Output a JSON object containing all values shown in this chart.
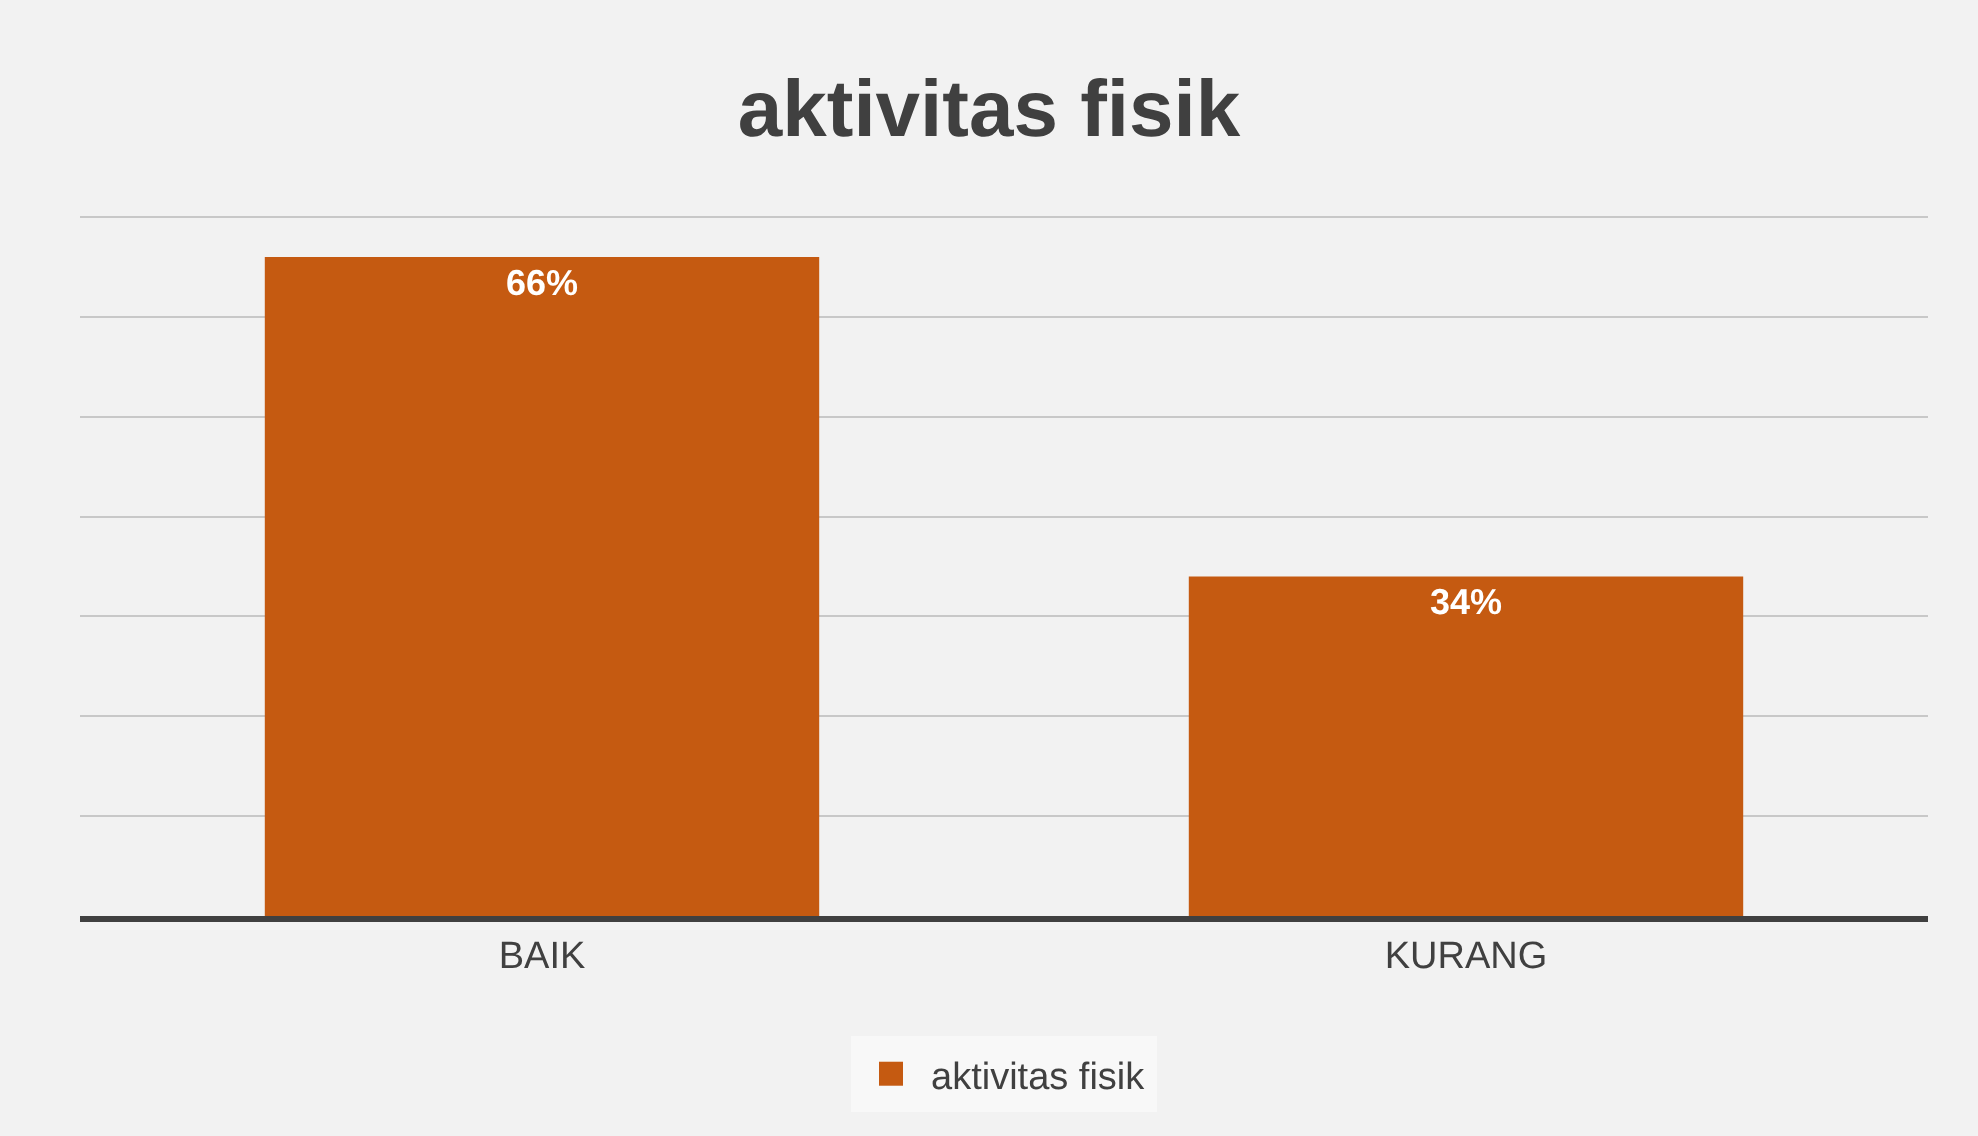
{
  "chart_data": {
    "type": "bar",
    "title": "aktivitas fisik",
    "categories": [
      "BAIK",
      "KURANG"
    ],
    "series": [
      {
        "name": "aktivitas fisik",
        "color": "#c55a11",
        "values": [
          66,
          34
        ],
        "value_labels": [
          "66%",
          "34%"
        ]
      }
    ],
    "yticks": [
      {
        "value": 0,
        "label": null
      },
      {
        "value": 10,
        "label": null
      },
      {
        "value": 20,
        "label": null
      },
      {
        "value": 30,
        "label": null
      },
      {
        "value": 40,
        "label": null
      },
      {
        "value": 50,
        "label": null
      },
      {
        "value": 60,
        "label": null
      },
      {
        "value": 70,
        "label": null
      }
    ],
    "grid": "y",
    "legend": "bottom",
    "tick_labels": "x"
  }
}
